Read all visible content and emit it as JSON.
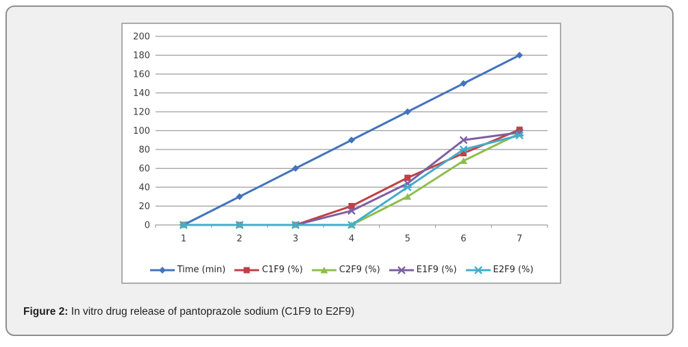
{
  "figure": {
    "caption_prefix": "Figure 2:",
    "caption_text": " In vitro drug release of pantoprazole sodium (C1F9 to E2F9)"
  },
  "colors": {
    "card_bg": "#f0f0f0",
    "card_border": "#8e8e8e",
    "chart_border": "#ababab",
    "gridline": "#9d9d9d",
    "tick_text": "#3c3c3c",
    "legend_text": "#262626"
  },
  "chart_data": {
    "type": "line",
    "x": [
      1,
      2,
      3,
      4,
      5,
      6,
      7
    ],
    "xticks": [
      "1",
      "2",
      "3",
      "4",
      "5",
      "6",
      "7"
    ],
    "yticks": [
      "0",
      "20",
      "40",
      "60",
      "80",
      "100",
      "120",
      "140",
      "160",
      "180",
      "200"
    ],
    "ylim": [
      0,
      200
    ],
    "ytick_step": 20,
    "grid": true,
    "legend_position": "bottom",
    "title": "",
    "xlabel": "",
    "ylabel": "",
    "series": [
      {
        "name": "Time (min)",
        "color": "#4273be",
        "marker": "diamond",
        "values": [
          0,
          30,
          60,
          90,
          120,
          150,
          180
        ]
      },
      {
        "name": "C1F9 (%)",
        "color": "#c04045",
        "marker": "square",
        "values": [
          0,
          0,
          0,
          20,
          50,
          76,
          101
        ]
      },
      {
        "name": "C2F9 (%)",
        "color": "#8dbe4b",
        "marker": "triangle",
        "values": [
          0,
          0,
          0,
          0,
          30,
          68,
          97
        ]
      },
      {
        "name": "E1F9 (%)",
        "color": "#7d5fa0",
        "marker": "x",
        "values": [
          0,
          0,
          0,
          15,
          44,
          90,
          98
        ]
      },
      {
        "name": "E2F9 (%)",
        "color": "#42adc9",
        "marker": "star",
        "values": [
          0,
          0,
          0,
          0,
          40,
          80,
          95
        ]
      }
    ]
  }
}
